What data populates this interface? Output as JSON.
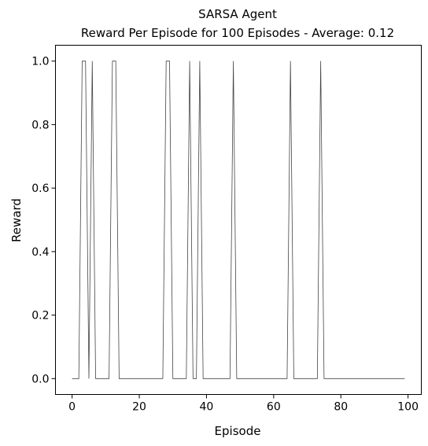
{
  "chart_data": {
    "type": "line",
    "title": "SARSA Agent",
    "subtitle": "Reward Per Episode for 100 Episodes - Average: 0.12",
    "xlabel": "Episode",
    "ylabel": "Reward",
    "xlim": [
      -4.95,
      103.95
    ],
    "ylim": [
      -0.05,
      1.05
    ],
    "xticks": [
      0,
      20,
      40,
      60,
      80,
      100
    ],
    "xtick_labels": [
      "0",
      "20",
      "40",
      "60",
      "80",
      "100"
    ],
    "yticks": [
      0.0,
      0.2,
      0.4,
      0.6,
      0.8,
      1.0
    ],
    "ytick_labels": [
      "0.0",
      "0.2",
      "0.4",
      "0.6",
      "0.8",
      "1.0"
    ],
    "grid": false,
    "line_color": "#444444",
    "series": [
      {
        "x": [
          0,
          1,
          2,
          3,
          4,
          5,
          6,
          7,
          8,
          9,
          10,
          11,
          12,
          13,
          14,
          15,
          16,
          17,
          18,
          19,
          20,
          21,
          22,
          23,
          24,
          25,
          26,
          27,
          28,
          29,
          30,
          31,
          32,
          33,
          34,
          35,
          36,
          37,
          38,
          39,
          40,
          41,
          42,
          43,
          44,
          45,
          46,
          47,
          48,
          49,
          50,
          51,
          52,
          53,
          54,
          55,
          56,
          57,
          58,
          59,
          60,
          61,
          62,
          63,
          64,
          65,
          66,
          67,
          68,
          69,
          70,
          71,
          72,
          73,
          74,
          75,
          76,
          77,
          78,
          79,
          80,
          81,
          82,
          83,
          84,
          85,
          86,
          87,
          88,
          89,
          90,
          91,
          92,
          93,
          94,
          95,
          96,
          97,
          98,
          99
        ],
        "values": [
          0,
          0,
          0,
          1,
          1,
          0,
          1,
          0,
          0,
          0,
          0,
          0,
          1,
          1,
          0,
          0,
          0,
          0,
          0,
          0,
          0,
          0,
          0,
          0,
          0,
          0,
          0,
          0,
          1,
          1,
          0,
          0,
          0,
          0,
          0,
          1,
          0,
          0,
          1,
          0,
          0,
          0,
          0,
          0,
          0,
          0,
          0,
          0,
          1,
          0,
          0,
          0,
          0,
          0,
          0,
          0,
          0,
          0,
          0,
          0,
          0,
          0,
          0,
          0,
          0,
          1,
          0,
          0,
          0,
          0,
          0,
          0,
          0,
          0,
          1,
          0,
          0,
          0,
          0,
          0,
          0,
          0,
          0,
          0,
          0,
          0,
          0,
          0,
          0,
          0,
          0,
          0,
          0,
          0,
          0,
          0,
          0,
          0,
          0,
          0
        ]
      }
    ]
  }
}
